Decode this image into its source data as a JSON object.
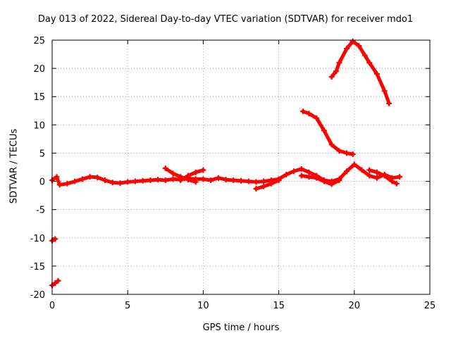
{
  "chart_data": {
    "type": "scatter",
    "title": "Day 013 of 2022, Sidereal Day-to-day VTEC variation (SDTVAR) for receiver mdo1",
    "xlabel": "GPS time / hours",
    "ylabel": "SDTVAR / TECUs",
    "xlim": [
      0,
      25
    ],
    "ylim": [
      -20,
      25
    ],
    "xticks": [
      "0",
      "5",
      "10",
      "15",
      "20",
      "25"
    ],
    "yticks": [
      "-20",
      "-15",
      "-10",
      "-5",
      "0",
      "5",
      "10",
      "15",
      "20",
      "25"
    ],
    "grid": true,
    "color": "#ff0000",
    "series": [
      {
        "name": "baseline",
        "points": [
          [
            0.0,
            0.2
          ],
          [
            0.3,
            0.8
          ],
          [
            0.5,
            -0.6
          ],
          [
            1.0,
            -0.4
          ],
          [
            1.5,
            0.0
          ],
          [
            2.0,
            0.4
          ],
          [
            2.5,
            0.8
          ],
          [
            3.0,
            0.7
          ],
          [
            3.5,
            0.2
          ],
          [
            4.0,
            -0.2
          ],
          [
            4.5,
            -0.3
          ],
          [
            5.0,
            -0.1
          ],
          [
            5.5,
            0.0
          ],
          [
            6.0,
            0.1
          ],
          [
            6.5,
            0.2
          ],
          [
            7.0,
            0.3
          ],
          [
            7.5,
            0.2
          ],
          [
            8.0,
            0.4
          ],
          [
            8.5,
            0.3
          ],
          [
            9.0,
            0.5
          ],
          [
            9.5,
            0.4
          ],
          [
            10.0,
            0.4
          ],
          [
            10.5,
            0.2
          ],
          [
            11.0,
            0.6
          ],
          [
            11.5,
            0.3
          ],
          [
            12.0,
            0.2
          ],
          [
            12.5,
            0.1
          ],
          [
            13.0,
            0.0
          ],
          [
            13.5,
            -0.1
          ],
          [
            14.0,
            0.0
          ],
          [
            14.5,
            0.2
          ],
          [
            15.0,
            0.4
          ],
          [
            15.5,
            1.2
          ],
          [
            16.0,
            1.8
          ],
          [
            16.5,
            2.2
          ],
          [
            17.0,
            1.6
          ],
          [
            17.5,
            1.0
          ],
          [
            18.0,
            0.2
          ],
          [
            18.5,
            0.0
          ],
          [
            19.0,
            0.4
          ],
          [
            19.5,
            1.8
          ],
          [
            20.0,
            3.0
          ],
          [
            20.5,
            2.0
          ],
          [
            21.0,
            1.0
          ],
          [
            21.5,
            0.6
          ],
          [
            22.0,
            1.2
          ],
          [
            22.5,
            0.6
          ],
          [
            23.0,
            0.8
          ]
        ]
      },
      {
        "name": "arc-7.5",
        "points": [
          [
            7.5,
            2.3
          ],
          [
            8.0,
            1.4
          ],
          [
            8.5,
            0.8
          ],
          [
            9.0,
            0.3
          ],
          [
            9.5,
            -0.1
          ]
        ]
      },
      {
        "name": "arc-8.5",
        "points": [
          [
            8.5,
            0.2
          ],
          [
            9.0,
            1.0
          ],
          [
            9.5,
            1.6
          ],
          [
            10.0,
            2.0
          ]
        ]
      },
      {
        "name": "arc-13.5",
        "points": [
          [
            13.5,
            -1.3
          ],
          [
            14.0,
            -0.9
          ],
          [
            14.5,
            -0.4
          ],
          [
            15.0,
            0.2
          ]
        ]
      },
      {
        "name": "arc-16.5",
        "points": [
          [
            16.5,
            1.0
          ],
          [
            17.0,
            0.8
          ],
          [
            17.5,
            0.6
          ],
          [
            18.0,
            0.0
          ],
          [
            18.5,
            -0.5
          ],
          [
            19.0,
            0.2
          ]
        ]
      },
      {
        "name": "arc-21",
        "points": [
          [
            21.0,
            2.0
          ],
          [
            21.5,
            1.6
          ],
          [
            22.0,
            1.0
          ],
          [
            22.5,
            0.0
          ],
          [
            22.8,
            -0.4
          ]
        ]
      },
      {
        "name": "drop-16.5",
        "points": [
          [
            16.6,
            12.4
          ],
          [
            17.0,
            12.0
          ],
          [
            17.5,
            11.2
          ],
          [
            18.0,
            9.0
          ],
          [
            18.5,
            6.5
          ],
          [
            19.0,
            5.4
          ],
          [
            19.5,
            5.0
          ],
          [
            19.9,
            4.8
          ]
        ]
      },
      {
        "name": "peak-18.5",
        "points": [
          [
            18.5,
            18.5
          ],
          [
            18.8,
            19.5
          ],
          [
            19.0,
            21.0
          ],
          [
            19.5,
            23.5
          ],
          [
            19.9,
            24.8
          ],
          [
            20.3,
            24.0
          ],
          [
            20.7,
            22.3
          ],
          [
            21.0,
            21.0
          ],
          [
            21.5,
            19.0
          ],
          [
            22.0,
            16.0
          ],
          [
            22.3,
            13.8
          ]
        ]
      },
      {
        "name": "start-mid",
        "points": [
          [
            0.0,
            -10.5
          ],
          [
            0.2,
            -10.2
          ]
        ]
      },
      {
        "name": "start-low",
        "points": [
          [
            0.0,
            -18.4
          ],
          [
            0.2,
            -18.0
          ],
          [
            0.4,
            -17.6
          ]
        ]
      }
    ]
  }
}
